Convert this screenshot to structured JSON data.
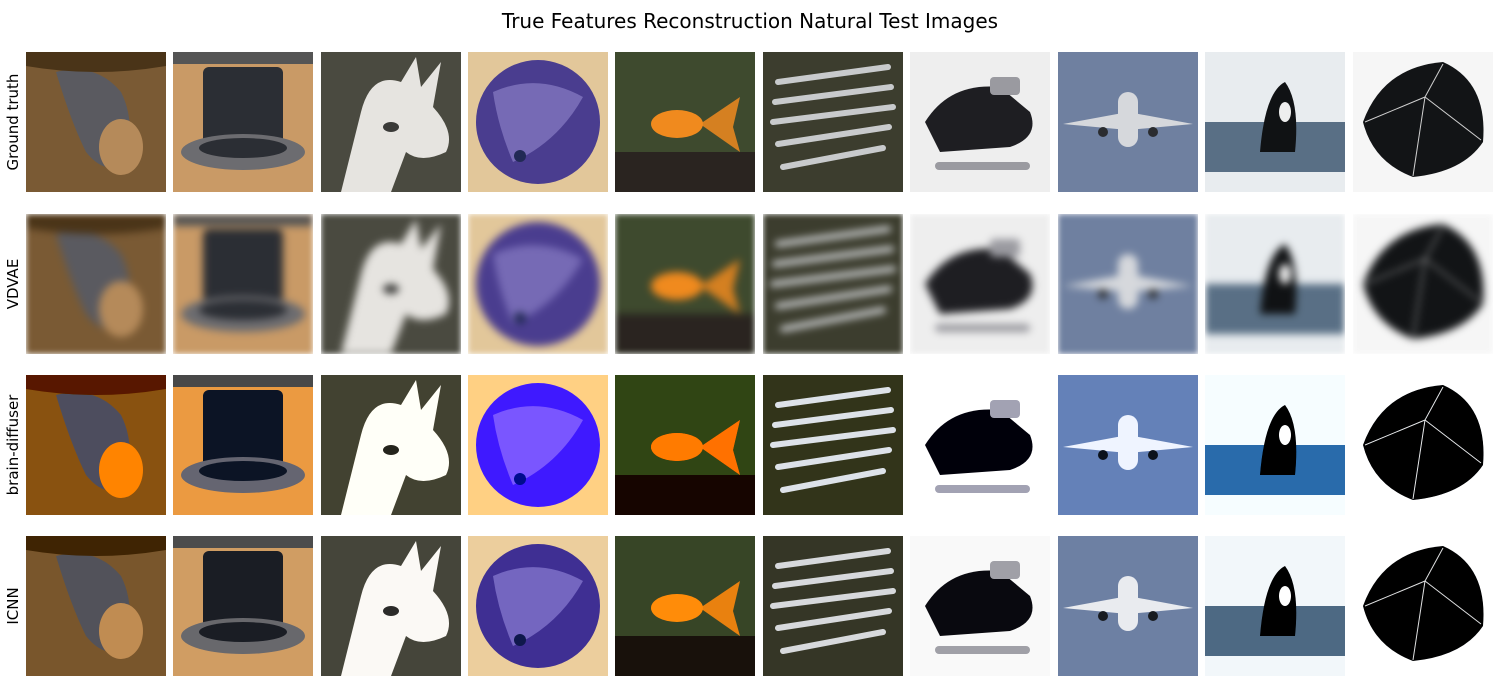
{
  "figure": {
    "title": "True Features Reconstruction Natural Test Images"
  },
  "rows": [
    {
      "label": "Ground truth",
      "style": "sharp"
    },
    {
      "label": "VDVAE",
      "style": "blur"
    },
    {
      "label": "brain-diffuser",
      "style": "vivid"
    },
    {
      "label": "ICNN",
      "style": "texture"
    }
  ],
  "columns": [
    {
      "subject": "bat",
      "bg": "#7a5a34",
      "fg": "#5a5a60",
      "accent": "#b58a5a"
    },
    {
      "subject": "top-hat",
      "bg": "#c99a66",
      "fg": "#2b2e34",
      "accent": "#6c6c70"
    },
    {
      "subject": "llama",
      "bg": "#4a4a40",
      "fg": "#e6e4e0",
      "accent": "#3a3a38"
    },
    {
      "subject": "bowling-ball",
      "bg": "#e2c79a",
      "fg": "#4a3d8f",
      "accent": "#9a8fd6"
    },
    {
      "subject": "goldfish",
      "bg": "#3e4a2e",
      "fg": "#f08a1e",
      "accent": "#2a2420"
    },
    {
      "subject": "knives",
      "bg": "#3c3d2e",
      "fg": "#c8cacc",
      "accent": "#8c8e88"
    },
    {
      "subject": "snowmobile",
      "bg": "#eeeeee",
      "fg": "#1e1e22",
      "accent": "#9a9aa0"
    },
    {
      "subject": "airplane",
      "bg": "#6f80a0",
      "fg": "#d6d8dc",
      "accent": "#2a2c30"
    },
    {
      "subject": "orca",
      "bg": "#e8ecef",
      "fg": "#101214",
      "accent": "#35506a"
    },
    {
      "subject": "umbrella",
      "bg": "#f6f6f6",
      "fg": "#121416",
      "accent": "#d0d0d0"
    }
  ]
}
